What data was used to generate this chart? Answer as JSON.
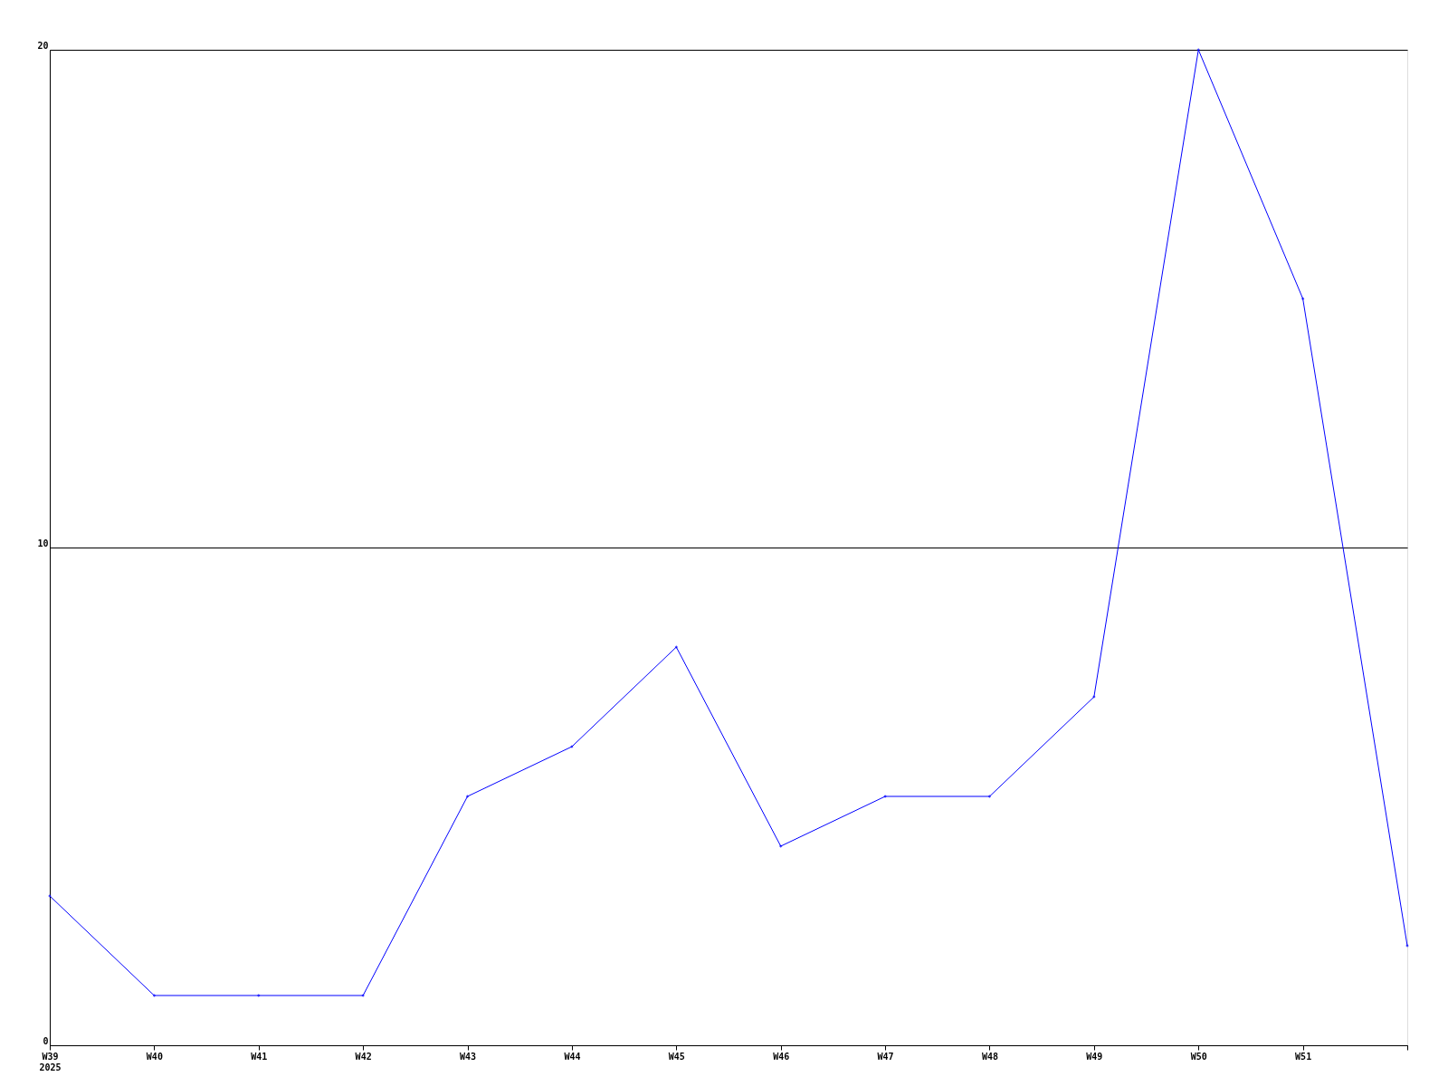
{
  "chart_data": {
    "type": "line",
    "categories": [
      "W39\n2025",
      "W40",
      "W41",
      "W42",
      "W43",
      "W44",
      "W45",
      "W46",
      "W47",
      "W48",
      "W49",
      "W50",
      "W51",
      null
    ],
    "series": [
      {
        "color": "#0000ff",
        "values": [
          3,
          1,
          1,
          1,
          5,
          6,
          8,
          4,
          5,
          5,
          7,
          20,
          15,
          2
        ]
      }
    ],
    "ylim": [
      0,
      20
    ],
    "yticks": [
      0,
      10,
      20
    ],
    "grid": "y",
    "marker": "diamond",
    "line_style": "solid"
  }
}
